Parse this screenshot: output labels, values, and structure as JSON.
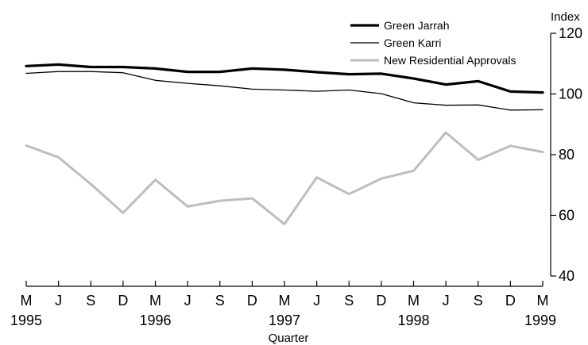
{
  "chart_data": {
    "type": "line",
    "title": "",
    "xlabel": "Quarter",
    "ylabel": "Index",
    "ylim": [
      40,
      120
    ],
    "yticks": [
      40,
      60,
      80,
      100,
      120
    ],
    "grid": false,
    "legend_position": "top-right",
    "x": [
      "1995-M",
      "1995-J",
      "1995-S",
      "1995-D",
      "1996-M",
      "1996-J",
      "1996-S",
      "1996-D",
      "1997-M",
      "1997-J",
      "1997-S",
      "1997-D",
      "1998-M",
      "1998-J",
      "1998-S",
      "1998-D",
      "1999-M"
    ],
    "quarter_letters": [
      "M",
      "J",
      "S",
      "D",
      "M",
      "J",
      "S",
      "D",
      "M",
      "J",
      "S",
      "D",
      "M",
      "J",
      "S",
      "D",
      "M"
    ],
    "year_labels": [
      {
        "index": 0,
        "label": "1995"
      },
      {
        "index": 4,
        "label": "1996"
      },
      {
        "index": 8,
        "label": "1997"
      },
      {
        "index": 12,
        "label": "1998"
      },
      {
        "index": 16,
        "label": "1999"
      }
    ],
    "series": [
      {
        "name": "Green Jarrah",
        "color": "#000000",
        "style": "thick",
        "values": [
          109.2,
          109.7,
          108.9,
          108.9,
          108.4,
          107.3,
          107.3,
          108.4,
          108.0,
          107.2,
          106.5,
          106.7,
          105.1,
          103.1,
          104.2,
          100.8,
          100.5
        ]
      },
      {
        "name": "Green Karri",
        "color": "#000000",
        "style": "thin",
        "values": [
          106.8,
          107.4,
          107.4,
          107.0,
          104.5,
          103.5,
          102.7,
          101.6,
          101.3,
          100.9,
          101.3,
          100.1,
          97.1,
          96.3,
          96.4,
          94.7,
          94.8
        ]
      },
      {
        "name": "New Residential Approvals",
        "color": "#bdbdbd",
        "style": "medium",
        "values": [
          83.0,
          79.1,
          70.3,
          60.8,
          71.7,
          62.9,
          64.8,
          65.6,
          57.1,
          72.5,
          67.0,
          72.1,
          74.7,
          87.3,
          78.3,
          82.9,
          80.9
        ]
      }
    ]
  }
}
